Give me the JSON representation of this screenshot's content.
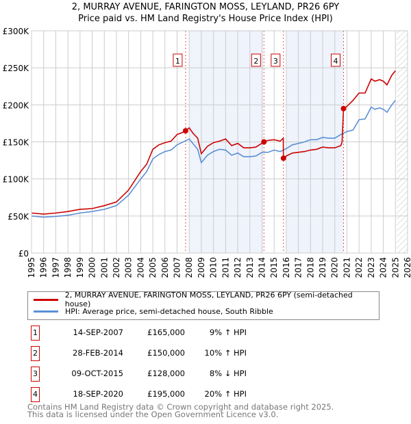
{
  "chart_data": {
    "type": "line",
    "title": "2, MURRAY AVENUE, FARINGTON MOSS, LEYLAND, PR26 6PY",
    "subtitle": "Price paid vs. HM Land Registry's House Price Index (HPI)",
    "xlim": [
      1995,
      2026
    ],
    "ylim": [
      0,
      300000
    ],
    "x_ticks": [
      "1995",
      "1996",
      "1997",
      "1998",
      "1999",
      "2000",
      "2001",
      "2002",
      "2003",
      "2004",
      "2005",
      "2006",
      "2007",
      "2008",
      "2009",
      "2010",
      "2011",
      "2012",
      "2013",
      "2014",
      "2015",
      "2016",
      "2017",
      "2018",
      "2019",
      "2020",
      "2021",
      "2022",
      "2023",
      "2024",
      "2025",
      "2026"
    ],
    "y_ticks": [
      {
        "v": 0,
        "label": "£0"
      },
      {
        "v": 50000,
        "label": "£50K"
      },
      {
        "v": 100000,
        "label": "£100K"
      },
      {
        "v": 150000,
        "label": "£150K"
      },
      {
        "v": 200000,
        "label": "£200K"
      },
      {
        "v": 250000,
        "label": "£250K"
      },
      {
        "v": 300000,
        "label": "£300K"
      }
    ],
    "shaded_ranges": [
      [
        2008.0,
        2014.1
      ],
      [
        2016.0,
        2020.7
      ]
    ],
    "future_hatch_from": 2025.1,
    "series": [
      {
        "name": "2, MURRAY AVENUE, FARINGTON MOSS, LEYLAND, PR26 6PY (semi-detached house)",
        "color": "#cc0000",
        "x": [
          1995,
          1996,
          1997,
          1998,
          1999,
          2000,
          2001,
          2002,
          2003,
          2004,
          2004.5,
          2005,
          2005.5,
          2006,
          2006.5,
          2007,
          2007.5,
          2007.7,
          2008,
          2008.3,
          2008.7,
          2009,
          2009.5,
          2010,
          2010.5,
          2011,
          2011.5,
          2012,
          2012.5,
          2013,
          2013.5,
          2014.16,
          2014.5,
          2015,
          2015.5,
          2015.75,
          2015.77,
          2016,
          2016.5,
          2017,
          2017.5,
          2018,
          2018.5,
          2019,
          2019.5,
          2020,
          2020.5,
          2020.6,
          2020.72,
          2021,
          2021.5,
          2022,
          2022.5,
          2023,
          2023.3,
          2023.7,
          2024,
          2024.3,
          2024.7,
          2025
        ],
        "y": [
          54000,
          52500,
          54000,
          56000,
          59000,
          60000,
          64000,
          69000,
          85000,
          110000,
          120000,
          140000,
          146000,
          149000,
          151000,
          160000,
          163000,
          165000,
          169000,
          162000,
          155000,
          134000,
          144000,
          149000,
          151000,
          154000,
          145000,
          148000,
          142000,
          142000,
          143000,
          150000,
          152000,
          153000,
          151000,
          155000,
          128000,
          131000,
          135000,
          136000,
          137000,
          139000,
          140000,
          143000,
          142000,
          142000,
          145000,
          150000,
          195000,
          198000,
          206000,
          216000,
          216000,
          235000,
          232000,
          234000,
          232000,
          227000,
          240000,
          246000
        ]
      },
      {
        "name": "HPI: Average price, semi-detached house, South Ribble",
        "color": "#5b8fd4",
        "x": [
          1995,
          1996,
          1997,
          1998,
          1999,
          2000,
          2001,
          2002,
          2003,
          2004,
          2004.5,
          2005,
          2005.5,
          2006,
          2006.5,
          2007,
          2007.5,
          2008,
          2008.3,
          2008.7,
          2009,
          2009.5,
          2010,
          2010.5,
          2011,
          2011.5,
          2012,
          2012.5,
          2013,
          2013.5,
          2014,
          2014.5,
          2015,
          2015.5,
          2016,
          2016.5,
          2017,
          2017.5,
          2018,
          2018.5,
          2019,
          2019.5,
          2020,
          2020.5,
          2021,
          2021.5,
          2022,
          2022.5,
          2023,
          2023.3,
          2023.7,
          2024,
          2024.3,
          2024.7,
          2025
        ],
        "y": [
          50000,
          48500,
          49500,
          51000,
          54000,
          56000,
          59000,
          64000,
          78000,
          100000,
          110000,
          127000,
          133000,
          137000,
          139000,
          146000,
          150000,
          154000,
          148000,
          140000,
          122000,
          132000,
          137000,
          140000,
          139000,
          132000,
          135000,
          130000,
          130000,
          131000,
          136000,
          136000,
          139000,
          137000,
          141000,
          146000,
          148000,
          150000,
          153000,
          153000,
          156000,
          155000,
          155000,
          160000,
          164000,
          166000,
          180000,
          181000,
          197000,
          194000,
          196000,
          194000,
          190000,
          200000,
          206000
        ]
      }
    ],
    "sales": [
      {
        "label": "1",
        "x": 2007.7,
        "y": 165000,
        "date": "14-SEP-2007",
        "price": "£165,000",
        "hpi": "9% ↑ HPI"
      },
      {
        "label": "2",
        "x": 2014.16,
        "y": 150000,
        "date": "28-FEB-2014",
        "price": "£150,000",
        "hpi": "10% ↑ HPI"
      },
      {
        "label": "3",
        "x": 2015.77,
        "y": 128000,
        "date": "09-OCT-2015",
        "price": "£128,000",
        "hpi": "8% ↓ HPI"
      },
      {
        "label": "4",
        "x": 2020.72,
        "y": 195000,
        "date": "18-SEP-2020",
        "price": "£195,000",
        "hpi": "20% ↑ HPI"
      }
    ]
  },
  "footer": {
    "line1": "Contains HM Land Registry data © Crown copyright and database right 2025.",
    "line2": "This data is licensed under the Open Government Licence v3.0."
  }
}
